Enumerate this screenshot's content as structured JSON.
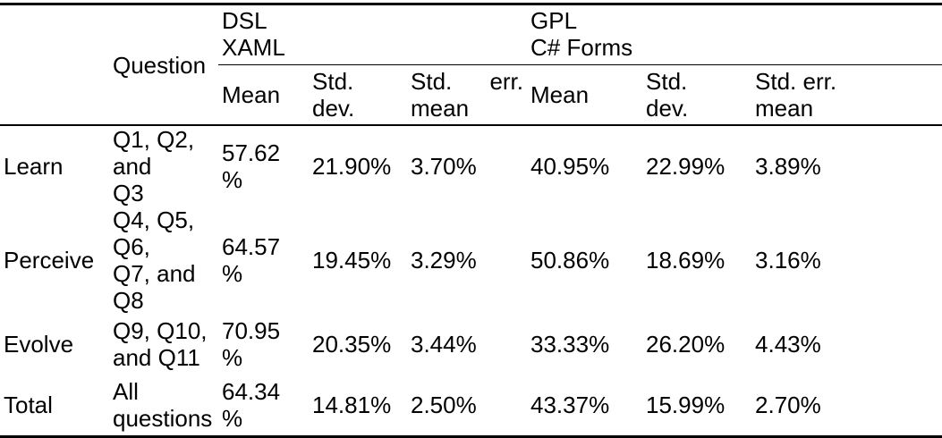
{
  "table": {
    "header": {
      "question_label": "Question",
      "dsl_label_1": "DSL",
      "dsl_label_2": "XAML",
      "gpl_label_1": "GPL",
      "gpl_label_2": "C# Forms",
      "dsl_mean": "Mean",
      "dsl_std_dev_1": "Std.",
      "dsl_std_dev_2": "dev.",
      "dsl_std_err_a": "Std.",
      "dsl_std_err_b": "err.",
      "dsl_std_err_2": "mean",
      "gpl_mean": "Mean",
      "gpl_std_dev_1": "Std.",
      "gpl_std_dev_2": "dev.",
      "gpl_std_err_1": "Std. err.",
      "gpl_std_err_2": "mean"
    },
    "rows": [
      {
        "category": "Learn",
        "question_1": "Q1, Q2, and",
        "question_2": "Q3",
        "dsl_mean_1": "57.62",
        "dsl_mean_2": "%",
        "dsl_std_dev": "21.90%",
        "dsl_std_err": "3.70%",
        "gpl_mean": "40.95%",
        "gpl_std_dev": "22.99%",
        "gpl_std_err": "3.89%"
      },
      {
        "category": "Perceive",
        "question_1": "Q4, Q5, Q6,",
        "question_2": "Q7, and Q8",
        "dsl_mean_1": "64.57",
        "dsl_mean_2": "%",
        "dsl_std_dev": "19.45%",
        "dsl_std_err": "3.29%",
        "gpl_mean": "50.86%",
        "gpl_std_dev": "18.69%",
        "gpl_std_err": "3.16%"
      },
      {
        "category": "Evolve",
        "question_1": "Q9, Q10,",
        "question_2": "and Q11",
        "dsl_mean_1": "70.95",
        "dsl_mean_2": "%",
        "dsl_std_dev": "20.35%",
        "dsl_std_err": "3.44%",
        "gpl_mean": "33.33%",
        "gpl_std_dev": "26.20%",
        "gpl_std_err": "4.43%"
      },
      {
        "category": "Total",
        "question_1": "All",
        "question_2": "questions",
        "dsl_mean_1": "64.34",
        "dsl_mean_2": "%",
        "dsl_std_dev": "14.81%",
        "dsl_std_err": "2.50%",
        "gpl_mean": "43.37%",
        "gpl_std_dev": "15.99%",
        "gpl_std_err": "2.70%"
      }
    ]
  }
}
